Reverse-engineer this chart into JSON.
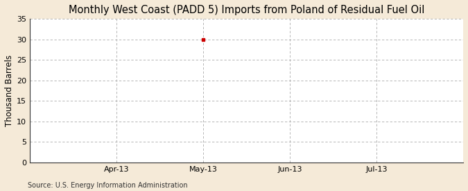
{
  "title": "Monthly West Coast (PADD 5) Imports from Poland of Residual Fuel Oil",
  "ylabel": "Thousand Barrels",
  "source": "Source: U.S. Energy Information Administration",
  "background_color": "#f5ead8",
  "plot_background_color": "#ffffff",
  "ylim": [
    0,
    35
  ],
  "yticks": [
    0,
    5,
    10,
    15,
    20,
    25,
    30,
    35
  ],
  "xtick_labels": [
    "Apr-13",
    "May-13",
    "Jun-13",
    "Jul-13"
  ],
  "xtick_positions": [
    2,
    3,
    4,
    5
  ],
  "xlim": [
    1,
    6
  ],
  "data_point_x": 3,
  "data_point_y": 30,
  "data_point_color": "#cc0000",
  "grid_color": "#aaaaaa",
  "grid_linestyle": "--",
  "vgrid_positions": [
    1,
    2,
    3,
    4,
    5,
    6
  ],
  "title_fontsize": 10.5,
  "axis_fontsize": 8.5,
  "tick_fontsize": 8,
  "source_fontsize": 7
}
